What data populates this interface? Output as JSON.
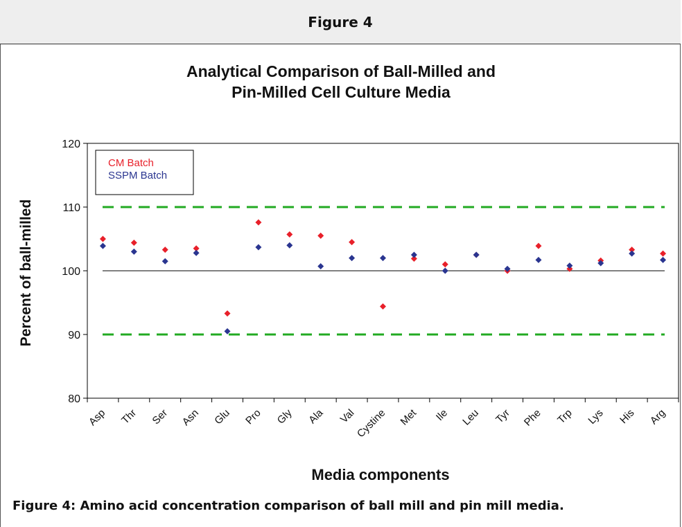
{
  "figure_header": "Figure 4",
  "caption": "Figure 4: Amino acid concentration comparison of ball mill and pin mill media.",
  "chart_data": {
    "type": "scatter",
    "title": "Analytical Comparison of Ball-Milled and Pin-Milled Cell Culture Media",
    "title_lines": [
      "Analytical Comparison of Ball-Milled and",
      "Pin-Milled Cell Culture Media"
    ],
    "xlabel": "Media components",
    "ylabel": "Percent of ball-milled",
    "ylim": [
      80,
      120
    ],
    "yticks": [
      80,
      90,
      100,
      110,
      120
    ],
    "legend_position": "top-left",
    "reference_lines": [
      {
        "y": 110,
        "style": "dashed",
        "color": "#22aa22"
      },
      {
        "y": 100,
        "style": "solid",
        "color": "#000000"
      },
      {
        "y": 90,
        "style": "dashed",
        "color": "#22aa22"
      }
    ],
    "categories": [
      "Asp",
      "Thr",
      "Ser",
      "Asn",
      "Glu",
      "Pro",
      "Gly",
      "Ala",
      "Val",
      "Cystine",
      "Met",
      "Ile",
      "Leu",
      "Tyr",
      "Phe",
      "Trp",
      "Lys",
      "His",
      "Arg"
    ],
    "series": [
      {
        "name": "CM Batch",
        "color": "#e8202a",
        "values": [
          105.0,
          104.4,
          103.3,
          103.5,
          93.3,
          107.6,
          105.7,
          105.5,
          104.5,
          94.4,
          101.9,
          101.0,
          102.5,
          100.0,
          103.9,
          100.3,
          101.6,
          103.3,
          102.7
        ]
      },
      {
        "name": "SSPM Batch",
        "color": "#2a3590",
        "values": [
          103.9,
          103.0,
          101.5,
          102.8,
          90.5,
          103.7,
          104.0,
          100.7,
          102.0,
          102.0,
          102.5,
          100.0,
          102.5,
          100.3,
          101.7,
          100.8,
          101.2,
          102.7,
          101.7
        ]
      }
    ]
  }
}
